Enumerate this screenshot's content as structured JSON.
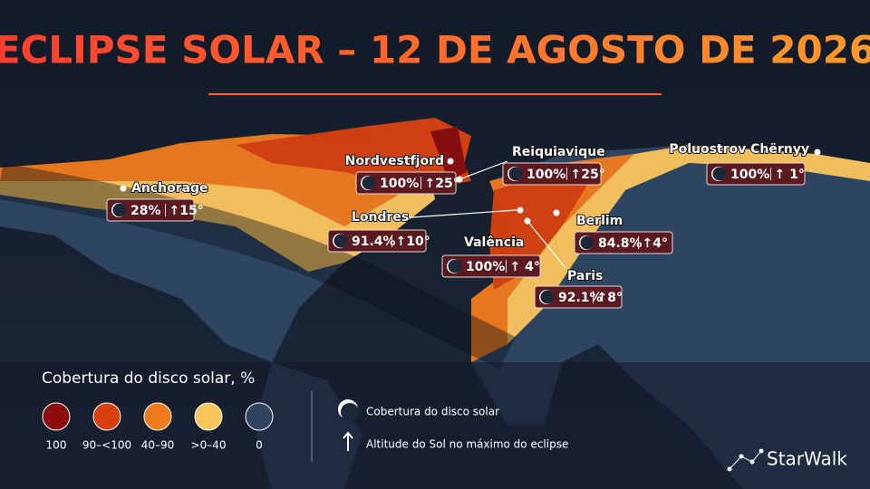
{
  "title": "ECLIPSE SOLAR – 12 DE AGOSTO DE 2026",
  "cities": [
    {
      "name": "Anchorage",
      "coverage": "28%",
      "altitude": "↑15°"
    },
    {
      "name": "Nordvestfjord",
      "coverage": "100%",
      "altitude": "↑25°"
    },
    {
      "name": "Reiquiavique",
      "coverage": "100%",
      "altitude": "↑25°"
    },
    {
      "name": "Poluostrov Chërnyy",
      "coverage": "100%",
      "altitude": "↑ 1°"
    },
    {
      "name": "Londres",
      "coverage": "91.4%",
      "altitude": "↑10°"
    },
    {
      "name": "Berlim",
      "coverage": "84.8%",
      "altitude": "↑4°"
    },
    {
      "name": "Valência",
      "coverage": "100%",
      "altitude": "↑ 4°"
    },
    {
      "name": "Paris",
      "coverage": "92.1%",
      "altitude": "↑8°"
    }
  ],
  "legend": {
    "title": "Cobertura do disco solar, %",
    "items": [
      {
        "label": "100",
        "color": "#8c0c0c"
      },
      {
        "label": "90–<100",
        "color": "#d8400e"
      },
      {
        "label": "40–90",
        "color": "#f07b1c"
      },
      {
        "label": ">0–40",
        "color": "#fbc55c"
      },
      {
        "label": "0",
        "color": "#2d4561"
      }
    ],
    "symbols": [
      "Cobertura do disco solar",
      "Altitude do Sol no máximo do eclipse"
    ]
  },
  "brand": "StarWalk"
}
